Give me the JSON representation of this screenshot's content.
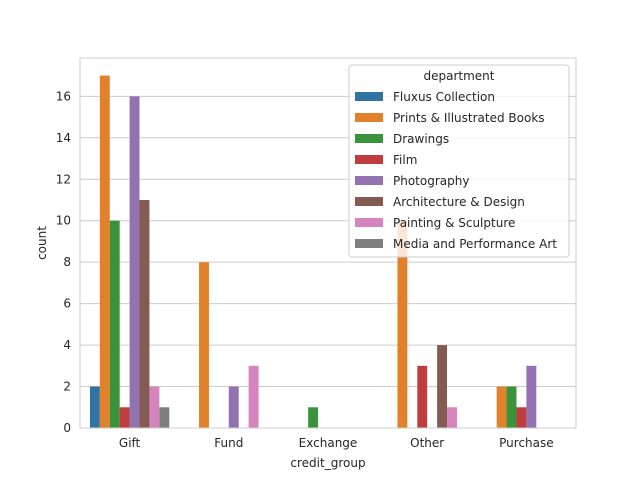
{
  "chart_data": {
    "type": "bar",
    "categories": [
      "Gift",
      "Fund",
      "Exchange",
      "Other",
      "Purchase"
    ],
    "xlabel": "credit_group",
    "ylabel": "count",
    "ylim": [
      0,
      17.85
    ],
    "yticks": [
      0,
      2,
      4,
      6,
      8,
      10,
      12,
      14,
      16
    ],
    "grid": true,
    "legend_title": "department",
    "legend_position": "top-right",
    "series": [
      {
        "name": "Fluxus Collection",
        "color": "#3274a1",
        "values": [
          2,
          0,
          0,
          0,
          0
        ]
      },
      {
        "name": "Prints & Illustrated Books",
        "color": "#e1812c",
        "values": [
          17,
          8,
          0,
          10,
          2
        ]
      },
      {
        "name": "Drawings",
        "color": "#3a923a",
        "values": [
          10,
          0,
          1,
          0,
          2
        ]
      },
      {
        "name": "Film",
        "color": "#c03d3e",
        "values": [
          1,
          0,
          0,
          3,
          1
        ]
      },
      {
        "name": "Photography",
        "color": "#9372b2",
        "values": [
          16,
          2,
          0,
          0,
          3
        ]
      },
      {
        "name": "Architecture & Design",
        "color": "#845b53",
        "values": [
          11,
          0,
          0,
          4,
          0
        ]
      },
      {
        "name": "Painting & Sculpture",
        "color": "#d684bd",
        "values": [
          2,
          3,
          0,
          1,
          0
        ]
      },
      {
        "name": "Media and Performance Art",
        "color": "#7f7f7f",
        "values": [
          1,
          0,
          0,
          0,
          0
        ]
      }
    ]
  }
}
